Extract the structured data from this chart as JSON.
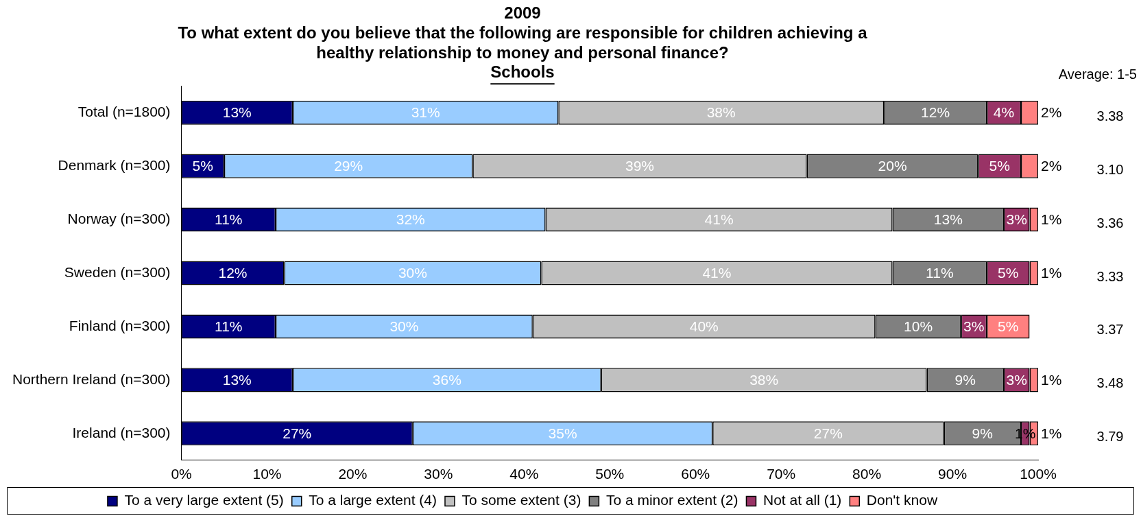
{
  "chart_data": {
    "type": "bar",
    "orientation": "horizontal",
    "stacked": true,
    "title": [
      "2009",
      "To what extent do you believe that the following are responsible for children achieving a",
      "healthy relationship to money and personal finance?"
    ],
    "subtitle": "Schools",
    "categories": [
      "Total (n=1800)",
      "Denmark (n=300)",
      "Norway (n=300)",
      "Sweden (n=300)",
      "Finland (n=300)",
      "Northern Ireland (n=300)",
      "Ireland (n=300)"
    ],
    "series": [
      {
        "name": "To a very large extent (5)",
        "color": "#000080",
        "values": [
          13,
          5,
          11,
          12,
          11,
          13,
          27
        ],
        "value_labels": [
          "13%",
          "5%",
          "11%",
          "12%",
          "11%",
          "13%",
          "27%"
        ]
      },
      {
        "name": "To a large extent (4)",
        "color": "#99ccff",
        "values": [
          31,
          29,
          31.5,
          30,
          30,
          36,
          35
        ],
        "value_labels": [
          "31%",
          "29%",
          "32%",
          "30%",
          "30%",
          "36%",
          "35%"
        ]
      },
      {
        "name": "To some extent (3)",
        "color": "#c0c0c0",
        "values": [
          38,
          39,
          40.5,
          41,
          40,
          38,
          27
        ],
        "value_labels": [
          "38%",
          "39%",
          "41%",
          "41%",
          "40%",
          "38%",
          "27%"
        ]
      },
      {
        "name": "To a minor extent (2)",
        "color": "#808080",
        "values": [
          12,
          20,
          13,
          11,
          10,
          9,
          9
        ],
        "value_labels": [
          "12%",
          "20%",
          "13%",
          "11%",
          "10%",
          "9%",
          "9%"
        ]
      },
      {
        "name": "Not at all (1)",
        "color": "#993366",
        "values": [
          4,
          5,
          3,
          5,
          3,
          3,
          1
        ],
        "value_labels": [
          "4%",
          "5%",
          "3%",
          "5%",
          "3%",
          "3%",
          "1%"
        ]
      },
      {
        "name": "Don't know",
        "color": "#ff8080",
        "values": [
          2,
          2,
          1,
          1,
          5,
          1,
          1
        ],
        "value_labels": [
          "2%",
          "2%",
          "1%",
          "1%",
          "5%",
          "1%",
          "1%"
        ]
      }
    ],
    "xlim": [
      0,
      100
    ],
    "xticks": [
      {
        "value": 0,
        "label": "0%"
      },
      {
        "value": 10,
        "label": "10%"
      },
      {
        "value": 20,
        "label": "20%"
      },
      {
        "value": 30,
        "label": "30%"
      },
      {
        "value": 40,
        "label": "40%"
      },
      {
        "value": 50,
        "label": "50%"
      },
      {
        "value": 60,
        "label": "60%"
      },
      {
        "value": 70,
        "label": "70%"
      },
      {
        "value": 80,
        "label": "80%"
      },
      {
        "value": 90,
        "label": "90%"
      },
      {
        "value": 100,
        "label": "100%"
      }
    ],
    "grid": false,
    "legend": "bottom",
    "annotations": [
      "Average: 1-5",
      "3.38",
      "3.10",
      "3.36",
      "3.33",
      "3.37",
      "3.48",
      "3.79"
    ]
  }
}
